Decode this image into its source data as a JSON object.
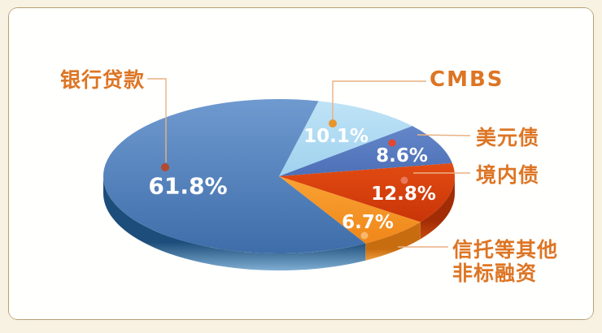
{
  "page": {
    "background_color": "#f7f2e1",
    "panel_color": "#fffffe",
    "frame_border_color": "#b79f72"
  },
  "chart_data": {
    "type": "pie",
    "style": "3d",
    "legend_position": "callout-labels",
    "value_suffix": "%",
    "start_angle_deg": 13,
    "colors": {
      "label_text": "#dd7524",
      "value_text": "#ffffff",
      "leader_line": "#e9b183"
    },
    "segments": [
      {
        "label": "CMBS",
        "value": 10.1,
        "color": "#bfe3f6",
        "color_dark": "#9fd2ee",
        "side_color": "#8abdde",
        "side_color_light": "#a8d2ec",
        "dot_color": "#e8942c"
      },
      {
        "label": "美元债",
        "value": 8.6,
        "color": "#6487c9",
        "color_dark": "#4d6fb6",
        "side_color": "#3d5a9e",
        "side_color_light": "#5f82c0",
        "dot_color": "#e8442a"
      },
      {
        "label": "境内债",
        "value": 12.8,
        "color": "#e24b12",
        "color_dark": "#c93508",
        "side_color": "#a22c05",
        "side_color_light": "#c64a10",
        "dot_color": "#e8795a"
      },
      {
        "label": "信托等其他非标融资",
        "value": 6.7,
        "color": "#f9a233",
        "color_dark": "#f0871a",
        "side_color": "#c76d10",
        "side_color_light": "#ef9c3c",
        "dot_color": "#f8b86c"
      },
      {
        "label": "银行贷款",
        "value": 61.8,
        "color": "#6f9ad0",
        "color_dark": "#3e6da9",
        "side_color": "#1d4d7a",
        "side_color_light": "#7fadd2",
        "dot_color": "#b44a2c"
      }
    ]
  }
}
